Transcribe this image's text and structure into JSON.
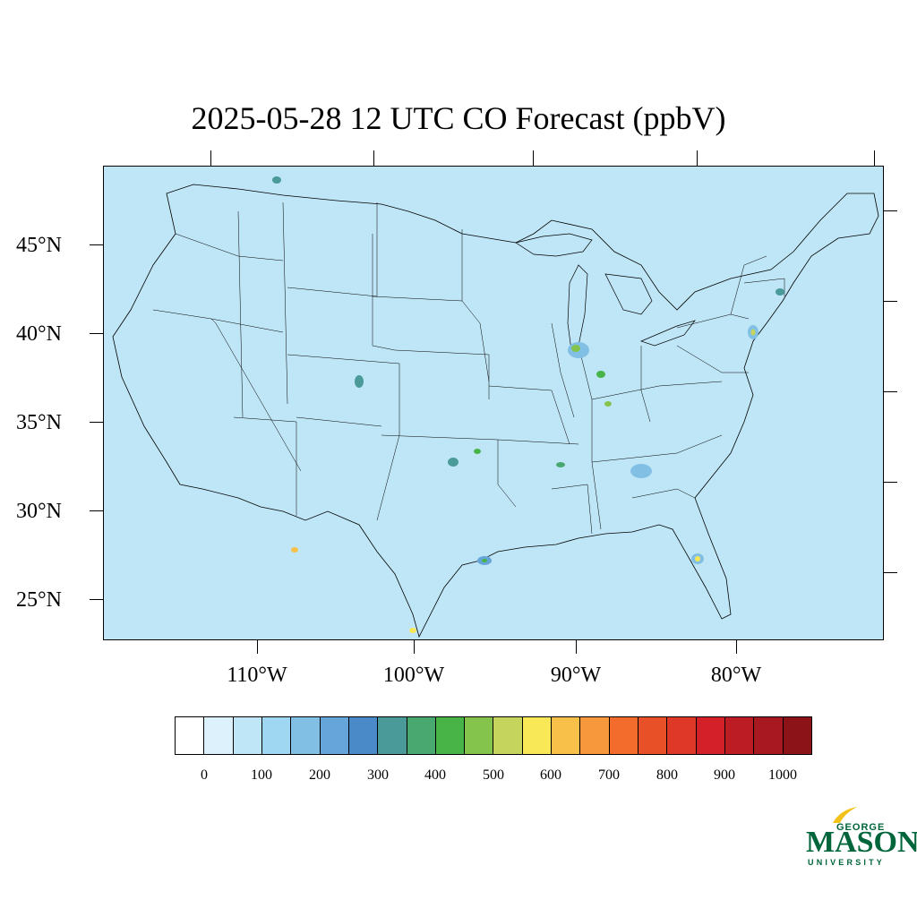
{
  "title": "2025-05-28 12 UTC CO Forecast (ppbV)",
  "map": {
    "region": "Contiguous United States",
    "lat_labels": [
      "45°N",
      "40°N",
      "35°N",
      "30°N",
      "25°N"
    ],
    "lon_labels": [
      "110°W",
      "100°W",
      "90°W",
      "80°W"
    ],
    "background_color": "#bfe6f7",
    "ocean_color": "#bfe6f7"
  },
  "colorbar": {
    "colors": [
      "#ffffff",
      "#dcf1fb",
      "#bfe6f7",
      "#9fd7f2",
      "#82bfe5",
      "#66a5d9",
      "#4a8ac8",
      "#4a9a9a",
      "#48a870",
      "#48b448",
      "#84c44c",
      "#c4d45c",
      "#f8e858",
      "#f8c048",
      "#f8983c",
      "#f46c2c",
      "#e85028",
      "#e03828",
      "#d42028",
      "#bc1c24",
      "#a81820",
      "#8c1418"
    ],
    "labels": [
      "0",
      "100",
      "200",
      "300",
      "400",
      "500",
      "600",
      "700",
      "800",
      "900",
      "1000"
    ]
  },
  "logo": {
    "line1": "GEORGE",
    "line2": "MASON",
    "line3": "UNIVERSITY",
    "brand_color": "#00653a",
    "accent_color": "#f2c21b"
  }
}
